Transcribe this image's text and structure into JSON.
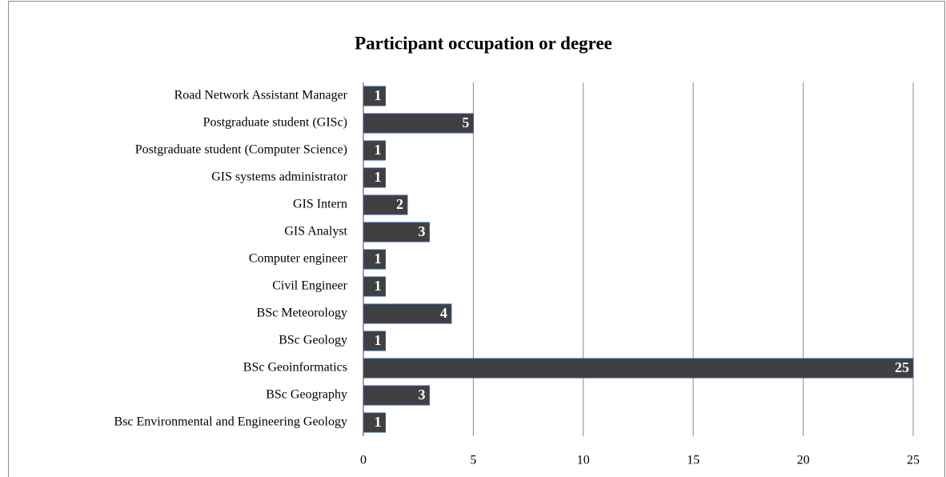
{
  "chart_data": {
    "type": "bar",
    "orientation": "horizontal",
    "title": "Participant occupation or degree",
    "categories": [
      "Road Network Assistant Manager",
      "Postgraduate student (GISc)",
      "Postgraduate student (Computer Science)",
      "GIS systems administrator",
      "GIS Intern",
      "GIS Analyst",
      "Computer engineer",
      "Civil Engineer",
      "BSc Meteorology",
      "BSc Geology",
      "BSc Geoinformatics",
      "BSc Geography",
      "Bsc Environmental and Engineering Geology"
    ],
    "values": [
      1,
      5,
      1,
      1,
      2,
      3,
      1,
      1,
      4,
      1,
      25,
      3,
      1
    ],
    "color": "#404040",
    "xlim": [
      0,
      25
    ],
    "xticks": [
      0,
      5,
      10,
      15,
      20,
      25
    ],
    "grid": true,
    "data_labels": true
  }
}
